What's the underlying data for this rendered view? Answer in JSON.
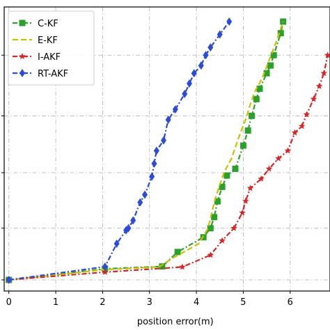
{
  "chart_data": {
    "type": "line",
    "title": "",
    "xlabel": "position error(m)",
    "ylabel": "",
    "xlim": [
      -0.1,
      6.85
    ],
    "xticks": [
      0,
      1,
      2,
      3,
      4,
      5,
      6
    ],
    "ylim": [
      0,
      1
    ],
    "grid": true,
    "legend": "top-left",
    "series": [
      {
        "name": "C-KF",
        "color": "#2ca02c",
        "linestyle": "dash-dot",
        "marker": "square",
        "x": [
          0,
          2.05,
          3.27,
          3.6,
          4.15,
          4.3,
          4.38,
          4.45,
          4.55,
          4.65,
          4.83,
          5.0,
          5.1,
          5.18,
          5.28,
          5.35,
          5.5,
          5.58,
          5.65,
          5.8,
          5.85
        ],
        "y": [
          0.0,
          0.043,
          0.052,
          0.108,
          0.165,
          0.2,
          0.243,
          0.304,
          0.36,
          0.404,
          0.43,
          0.52,
          0.578,
          0.635,
          0.7,
          0.74,
          0.8,
          0.83,
          0.87,
          0.955,
          1.0
        ]
      },
      {
        "name": "E-KF",
        "color": "#c9c100",
        "linestyle": "dash",
        "marker": "none",
        "x": [
          0,
          2.05,
          3.2,
          3.55,
          4.05,
          4.25,
          4.38,
          4.5,
          4.6,
          4.75,
          4.9,
          5.05,
          5.15,
          5.25,
          5.4,
          5.55,
          5.7,
          5.85
        ],
        "y": [
          0.0,
          0.04,
          0.05,
          0.09,
          0.14,
          0.2,
          0.3,
          0.37,
          0.42,
          0.47,
          0.55,
          0.62,
          0.68,
          0.73,
          0.78,
          0.85,
          0.92,
          1.0
        ]
      },
      {
        "name": "I-AKF",
        "color": "#d62728",
        "linestyle": "dash-dot",
        "marker": "star",
        "x": [
          0,
          2.05,
          3.7,
          4.3,
          4.55,
          4.8,
          4.98,
          5.05,
          5.15,
          5.38,
          5.55,
          5.75,
          5.95,
          6.1,
          6.25,
          6.35,
          6.5,
          6.62,
          6.72,
          6.8
        ],
        "y": [
          0.0,
          0.03,
          0.05,
          0.096,
          0.152,
          0.2,
          0.26,
          0.305,
          0.355,
          0.391,
          0.43,
          0.47,
          0.5,
          0.57,
          0.595,
          0.64,
          0.7,
          0.75,
          0.8,
          0.87
        ]
      },
      {
        "name": "RT-AKF",
        "color": "#2c4bd6",
        "linestyle": "dash-dot",
        "marker": "diamond",
        "x": [
          0,
          2.05,
          2.3,
          2.5,
          2.55,
          2.65,
          2.8,
          2.9,
          3.05,
          3.1,
          3.15,
          3.3,
          3.4,
          3.55,
          3.75,
          3.85,
          3.95,
          4.1,
          4.2,
          4.3,
          4.5,
          4.7
        ],
        "y": [
          0.0,
          0.051,
          0.14,
          0.192,
          0.2,
          0.23,
          0.3,
          0.33,
          0.4,
          0.45,
          0.5,
          0.54,
          0.62,
          0.66,
          0.72,
          0.76,
          0.8,
          0.83,
          0.87,
          0.9,
          0.95,
          1.0
        ]
      }
    ]
  }
}
